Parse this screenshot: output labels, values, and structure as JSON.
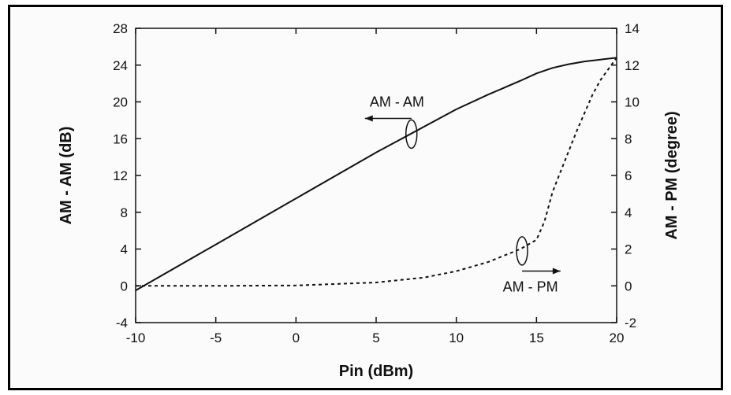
{
  "chart_data": {
    "type": "line",
    "xlabel": "Pin (dBm)",
    "ylabel": "AM - AM (dB)",
    "y2label": "AM - PM (degree)",
    "xlim": [
      -10,
      20
    ],
    "ylim": [
      -4,
      28
    ],
    "y2lim": [
      -2,
      14
    ],
    "x_ticks": [
      -10,
      -5,
      0,
      5,
      10,
      15,
      20
    ],
    "y_ticks": [
      -4,
      0,
      4,
      8,
      12,
      16,
      20,
      24,
      28
    ],
    "y2_ticks": [
      -2,
      0,
      2,
      4,
      6,
      8,
      10,
      12,
      14
    ],
    "grid": false,
    "series": [
      {
        "name": "AM - AM",
        "axis": "left",
        "style": "solid",
        "x": [
          -10,
          -5,
          0,
          5,
          10,
          12,
          14,
          15,
          16,
          17,
          18,
          19,
          20
        ],
        "y": [
          -0.5,
          4.5,
          9.5,
          14.5,
          19.2,
          20.8,
          22.3,
          23.1,
          23.7,
          24.1,
          24.4,
          24.6,
          24.8
        ]
      },
      {
        "name": "AM - PM",
        "axis": "right",
        "style": "dashed",
        "x": [
          -10,
          -5,
          0,
          5,
          8,
          10,
          12,
          14,
          15,
          15.5,
          16,
          16.5,
          17,
          17.5,
          18,
          18.5,
          19,
          19.5,
          20
        ],
        "y": [
          0,
          0,
          0.02,
          0.18,
          0.45,
          0.8,
          1.3,
          2.0,
          2.5,
          3.5,
          5.1,
          6.2,
          7.3,
          8.4,
          9.4,
          10.4,
          11.2,
          11.8,
          12.4
        ]
      }
    ],
    "annotations": [
      {
        "text": "AM - AM",
        "series": "AM - AM",
        "arrow_to": "left-axis"
      },
      {
        "text": "AM - PM",
        "series": "AM - PM",
        "arrow_to": "right-axis"
      }
    ]
  }
}
